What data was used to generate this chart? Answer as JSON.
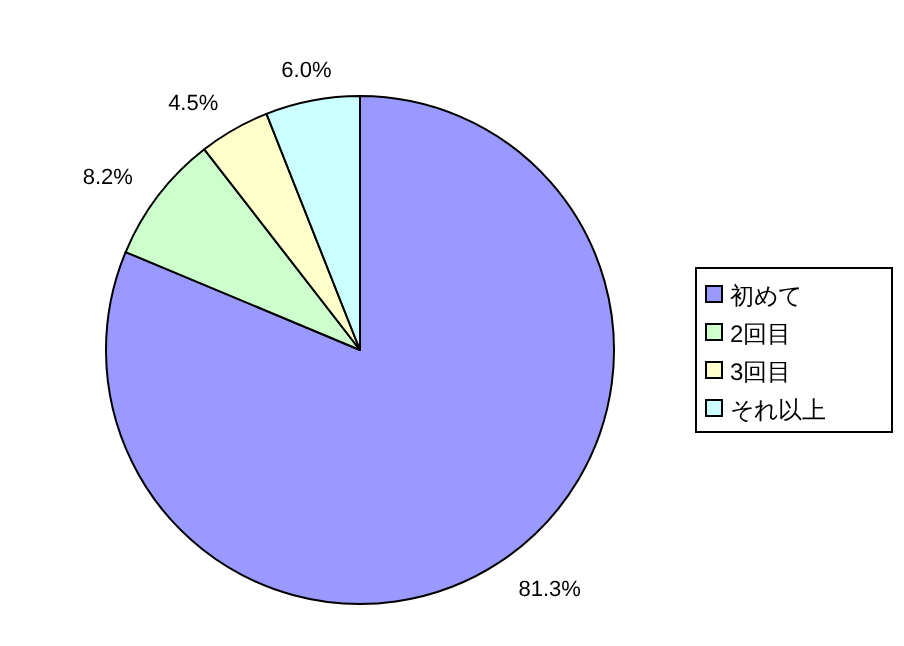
{
  "chart_data": {
    "type": "pie",
    "categories": [
      "初めて",
      "2回目",
      "3回目",
      "それ以上"
    ],
    "values": [
      81.3,
      8.2,
      4.5,
      6.0
    ],
    "colors": [
      "#9999ff",
      "#ccffcc",
      "#ffffcc",
      "#ccffff"
    ],
    "value_labels": [
      "81.3%",
      "8.2%",
      "4.5%",
      "6.0%"
    ],
    "legend": "right"
  }
}
